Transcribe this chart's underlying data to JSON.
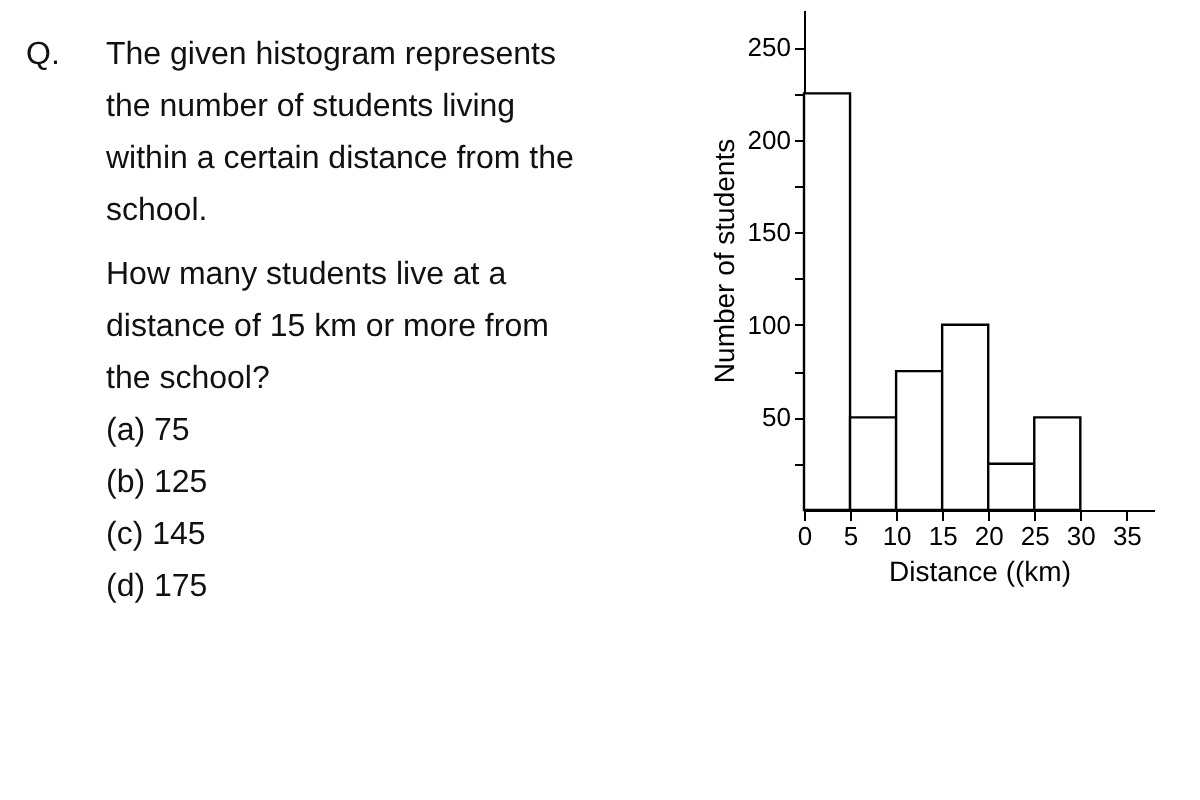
{
  "chart_data": {
    "type": "histogram",
    "xlabel": "Distance ((km)",
    "ylabel": "Number of students",
    "bins": [
      0,
      5,
      10,
      15,
      20,
      25,
      30
    ],
    "values": [
      225,
      50,
      75,
      100,
      25,
      50
    ],
    "color": "#ffffff",
    "xlim": [
      0,
      38
    ],
    "ylim": [
      0,
      270
    ],
    "xticks": [
      0,
      5,
      10,
      15,
      20,
      25,
      30,
      35
    ],
    "yticks": [
      {
        "value": 25,
        "label": null
      },
      50,
      {
        "value": 75,
        "label": null
      },
      100,
      {
        "value": 125,
        "label": null
      },
      150,
      {
        "value": 175,
        "label": null
      },
      200,
      {
        "value": 225,
        "label": null
      },
      250
    ],
    "grid": false,
    "annotations": [
      "Q.",
      "The given histogram represents",
      "the number of students living",
      "within a certain distance from the",
      "school.",
      "How many students live at a",
      "distance of 15 km or more from",
      "the school?",
      "(a)  75",
      "(b)  125",
      "(c)  145",
      "(d)  175"
    ]
  }
}
